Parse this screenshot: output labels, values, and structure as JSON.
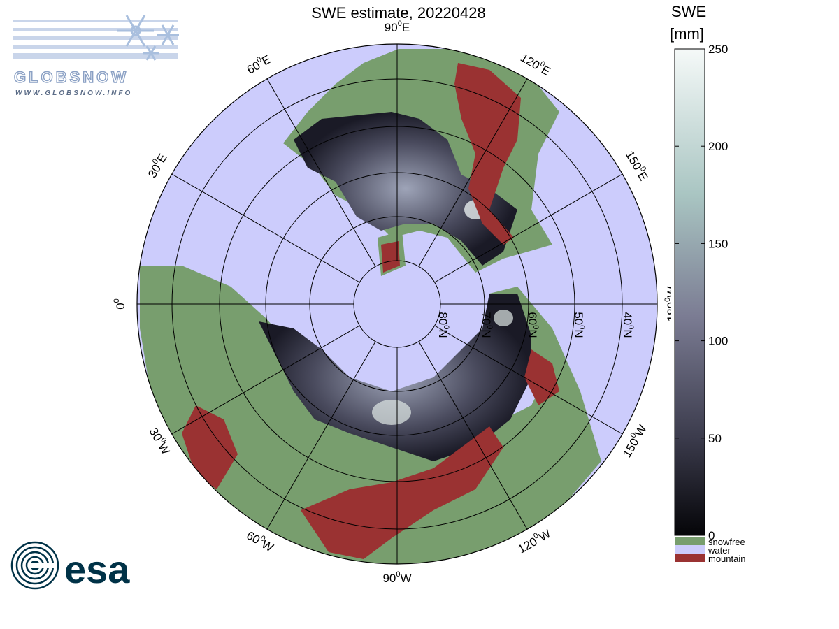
{
  "map": {
    "title": "SWE estimate, 20220428",
    "projection": "north-polar-stereographic",
    "meridian_labels": [
      {
        "lon": 0,
        "text": "0",
        "sup": "0",
        "suffix": ""
      },
      {
        "lon": 30,
        "text": "30",
        "sup": "0",
        "suffix": "W"
      },
      {
        "lon": 60,
        "text": "60",
        "sup": "0",
        "suffix": "W"
      },
      {
        "lon": 90,
        "text": "90",
        "sup": "0",
        "suffix": "W"
      },
      {
        "lon": 120,
        "text": "120",
        "sup": "0",
        "suffix": "W"
      },
      {
        "lon": 150,
        "text": "150",
        "sup": "0",
        "suffix": "W"
      },
      {
        "lon": 180,
        "text": "180",
        "sup": "0",
        "suffix": "W"
      },
      {
        "lon": 210,
        "text": "150",
        "sup": "0",
        "suffix": "E"
      },
      {
        "lon": 240,
        "text": "120",
        "sup": "0",
        "suffix": "E"
      },
      {
        "lon": 270,
        "text": "90",
        "sup": "0",
        "suffix": "E"
      },
      {
        "lon": 300,
        "text": "60",
        "sup": "0",
        "suffix": "E"
      },
      {
        "lon": 330,
        "text": "30",
        "sup": "0",
        "suffix": "E"
      }
    ],
    "parallel_labels": [
      {
        "lat": 80,
        "text": "80",
        "sup": "0",
        "suffix": "N"
      },
      {
        "lat": 70,
        "text": "70",
        "sup": "0",
        "suffix": "N"
      },
      {
        "lat": 60,
        "text": "60",
        "sup": "0",
        "suffix": "N"
      },
      {
        "lat": 50,
        "text": "50",
        "sup": "0",
        "suffix": "N"
      },
      {
        "lat": 40,
        "text": "40",
        "sup": "0",
        "suffix": "N"
      }
    ]
  },
  "legend": {
    "title_line1": "SWE",
    "title_line2": "[mm]",
    "ticks": [
      "250",
      "200",
      "150",
      "100",
      "50",
      "0"
    ],
    "range_mm": [
      0,
      250
    ],
    "categories": [
      {
        "label": "snowfree",
        "color": "#789e6e"
      },
      {
        "label": "water",
        "color": "#ccccfc"
      },
      {
        "label": "mountain",
        "color": "#9a3232"
      }
    ]
  },
  "logos": {
    "globsnow_text": "GLOBSNOW",
    "globsnow_url": "WWW.GLOBSNOW.INFO",
    "esa_text": "esa"
  },
  "colors": {
    "water": "#ccccfc",
    "snowfree": "#789e6e",
    "mountain": "#9a3232",
    "snow_low": "#0c0c14",
    "snow_mid": "#7a7b92",
    "snow_high": "#f3f8f6",
    "esa_blue": "#003247"
  }
}
